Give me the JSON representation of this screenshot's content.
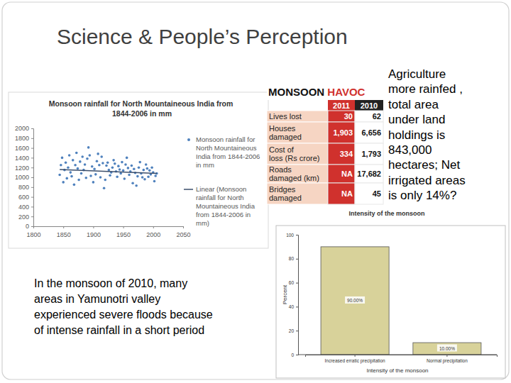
{
  "slide": {
    "title": "Science & People’s Perception",
    "text_right": [
      "Agriculture",
      "more rainfed ,",
      "total area",
      "under land",
      "holdings is",
      "843,000",
      "hectares; Net",
      "irrigated areas",
      "is only 14%?"
    ],
    "text_left": [
      "In the monsoon of 2010, many",
      "areas in Yamunotri valley",
      "experienced severe floods because",
      "of intense rainfall in a short period"
    ]
  },
  "table": {
    "title": [
      "MONSOON",
      "HAVOC"
    ],
    "columns": [
      "2011",
      "2010"
    ],
    "rows": [
      {
        "label": [
          "Lives lost"
        ],
        "values": [
          "30",
          "62"
        ]
      },
      {
        "label": [
          "Houses",
          "damaged"
        ],
        "values": [
          "1,903",
          "6,656"
        ]
      },
      {
        "label": [
          "Cost of",
          "loss (Rs crore)"
        ],
        "values": [
          "334",
          "1,793"
        ]
      },
      {
        "label": [
          "Roads",
          "damaged (km)"
        ],
        "values": [
          "NA",
          "17,682"
        ]
      },
      {
        "label": [
          "Bridges",
          "damaged"
        ],
        "values": [
          "NA",
          "45"
        ]
      }
    ]
  },
  "chart_data": [
    {
      "type": "scatter",
      "title": "Monsoon rainfall for North Mountaineous India from 1844-2006 in mm",
      "xlim": [
        1800,
        2050
      ],
      "xticks": [
        1800,
        1850,
        1900,
        1950,
        2000,
        2050
      ],
      "ylim": [
        0,
        2000
      ],
      "yticks": [
        0,
        200,
        400,
        600,
        800,
        1000,
        1200,
        1400,
        1600,
        1800,
        2000
      ],
      "grid": false,
      "legend": "right",
      "series": [
        {
          "name": "Monsoon rainfall for North Mountaineous India from 1844-2006 in mm",
          "type": "scatter",
          "marker": "circle",
          "color": "#4f81bd",
          "x": [
            1844,
            1846,
            1848,
            1850,
            1852,
            1854,
            1856,
            1858,
            1860,
            1862,
            1864,
            1866,
            1868,
            1870,
            1872,
            1874,
            1876,
            1878,
            1880,
            1882,
            1884,
            1886,
            1888,
            1890,
            1892,
            1894,
            1896,
            1898,
            1900,
            1902,
            1904,
            1906,
            1908,
            1910,
            1912,
            1914,
            1916,
            1918,
            1920,
            1922,
            1924,
            1926,
            1928,
            1930,
            1932,
            1934,
            1936,
            1938,
            1940,
            1942,
            1944,
            1946,
            1948,
            1950,
            1952,
            1954,
            1956,
            1958,
            1960,
            1962,
            1964,
            1966,
            1968,
            1970,
            1972,
            1974,
            1976,
            1978,
            1980,
            1982,
            1984,
            1986,
            1988,
            1990,
            1992,
            1994,
            1996,
            1998,
            2000,
            2002,
            2004,
            2006
          ],
          "values": [
            1050,
            1250,
            1400,
            900,
            1150,
            1300,
            980,
            1200,
            1450,
            1100,
            1020,
            1350,
            850,
            1250,
            1500,
            1180,
            950,
            1320,
            1080,
            1420,
            1150,
            1260,
            990,
            1380,
            1610,
            1450,
            1030,
            1220,
            900,
            1170,
            1060,
            1330,
            1480,
            1250,
            1000,
            1420,
            1290,
            780,
            950,
            1240,
            1300,
            1150,
            1040,
            1100,
            1200,
            1350,
            1280,
            1120,
            1010,
            1230,
            1160,
            1080,
            1310,
            1140,
            970,
            1260,
            1400,
            1190,
            1050,
            1120,
            1240,
            880,
            1170,
            1090,
            830,
            1020,
            1200,
            1310,
            1080,
            1000,
            1150,
            960,
            1260,
            1180,
            1010,
            1140,
            1060,
            1200,
            1100,
            920,
            1030,
            1080
          ]
        },
        {
          "name": "Linear (Monsoon rainfall for North Mountaineous India from 1844-2006 in mm)",
          "type": "line",
          "line_style": "solid",
          "color": "#3b4e6b",
          "x": [
            1844,
            2006
          ],
          "values": [
            1160,
            1080
          ]
        }
      ]
    },
    {
      "type": "bar",
      "title": "Intensity of the monsoon",
      "x_label": "Intensity of the monsoon",
      "y_label": "Percent",
      "categories": [
        "Increased erratic precipitation",
        "Normal precipitation"
      ],
      "values": [
        90,
        10
      ],
      "value_labels": [
        "90.00%",
        "10.00%"
      ],
      "data_labels": true,
      "color": "#d8d29a",
      "ylim": [
        0,
        100
      ],
      "yticks": [
        0,
        20,
        40,
        60,
        80,
        100
      ],
      "grid": false
    }
  ]
}
